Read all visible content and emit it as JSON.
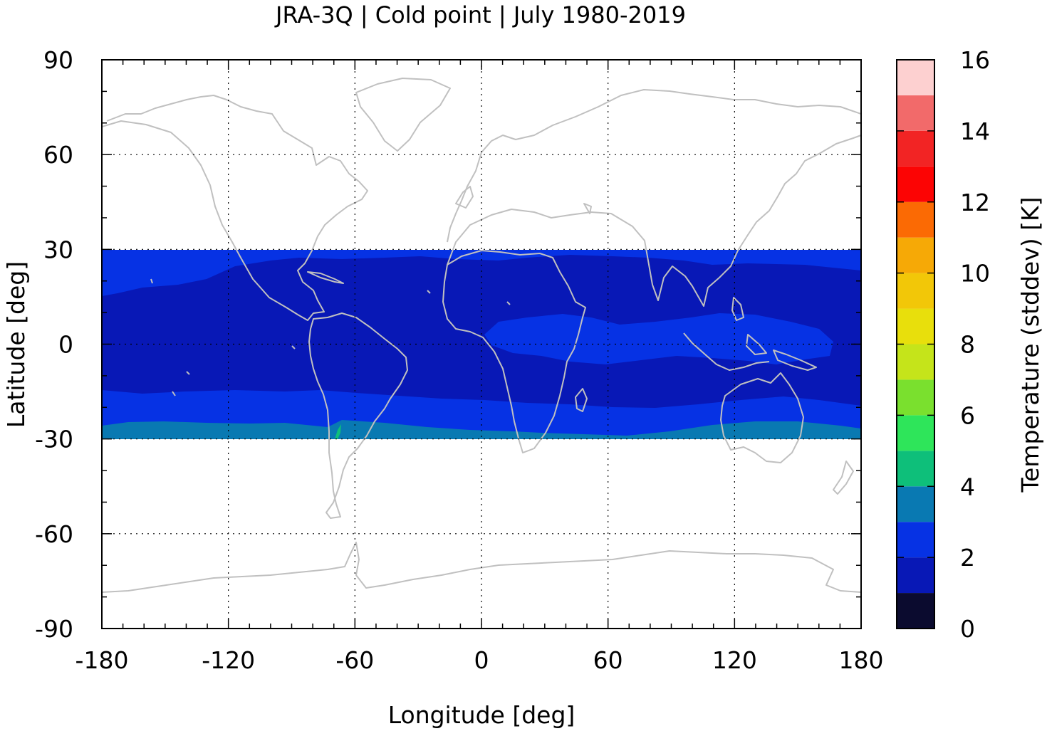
{
  "chart_data": {
    "type": "heatmap",
    "title": "JRA-3Q | Cold point | July 1980-2019",
    "xlabel": "Longitude [deg]",
    "ylabel": "Latitude [deg]",
    "xlim": [
      -180,
      180
    ],
    "ylim": [
      -90,
      90
    ],
    "x_ticks": [
      "-180",
      "-120",
      "-60",
      "0",
      "60",
      "120",
      "180"
    ],
    "y_ticks": [
      "90",
      "60",
      "30",
      "0",
      "-30",
      "-60",
      "-90"
    ],
    "grid": true,
    "data_lat_range": [
      -30,
      30
    ],
    "coastlines_color": "#c0c0c0",
    "colorbar": {
      "label": "Temperature (stddev) [K]",
      "range": [
        0,
        16
      ],
      "ticks": [
        "0",
        "2",
        "4",
        "6",
        "8",
        "10",
        "12",
        "14",
        "16"
      ],
      "levels": [
        {
          "from": 0,
          "to": 1,
          "color": "#0b0b2f"
        },
        {
          "from": 1,
          "to": 2,
          "color": "#0818b6"
        },
        {
          "from": 2,
          "to": 3,
          "color": "#0632e4"
        },
        {
          "from": 3,
          "to": 4,
          "color": "#0979b2"
        },
        {
          "from": 4,
          "to": 5,
          "color": "#0ebf7a"
        },
        {
          "from": 5,
          "to": 6,
          "color": "#2ee55a"
        },
        {
          "from": 6,
          "to": 7,
          "color": "#7ae02e"
        },
        {
          "from": 7,
          "to": 8,
          "color": "#c5e41a"
        },
        {
          "from": 8,
          "to": 9,
          "color": "#e8df0c"
        },
        {
          "from": 9,
          "to": 10,
          "color": "#f2c708"
        },
        {
          "from": 10,
          "to": 11,
          "color": "#f6a906"
        },
        {
          "from": 11,
          "to": 12,
          "color": "#fb6a04"
        },
        {
          "from": 12,
          "to": 13,
          "color": "#fc0404"
        },
        {
          "from": 13,
          "to": 14,
          "color": "#f22424"
        },
        {
          "from": 14,
          "to": 15,
          "color": "#f26a6a"
        },
        {
          "from": 15,
          "to": 16,
          "color": "#fdd0d0"
        }
      ]
    },
    "fields": [
      {
        "level": "1-2 K",
        "color": "#0818b6",
        "region": "tropical core, roughly 20S-25N"
      },
      {
        "level": "2-3 K",
        "color": "#0632e4",
        "region": "subtropical belts near 20-30N and 18-28S, plus equatorial Africa-Indian Ocean-Maritime Continent band"
      },
      {
        "level": "3-4 K",
        "color": "#0979b2",
        "region": "southern edge near 25-30S"
      },
      {
        "level": "4-5 K",
        "color": "#0ebf7a",
        "region": "small patch near 70W, 25-30S"
      }
    ]
  }
}
